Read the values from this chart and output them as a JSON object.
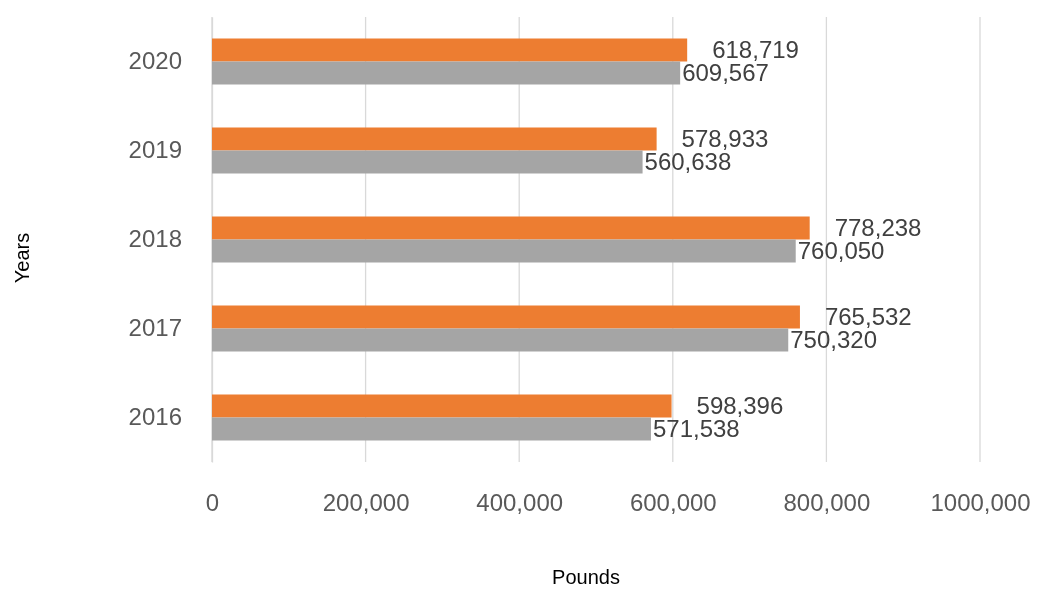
{
  "chart_data": {
    "type": "bar",
    "orientation": "horizontal",
    "xlabel": "Pounds",
    "ylabel": "Years",
    "categories": [
      "2020",
      "2019",
      "2018",
      "2017",
      "2016"
    ],
    "series": [
      {
        "color": "#ed7d31",
        "values": [
          618719,
          578933,
          778238,
          765532,
          598396
        ],
        "value_labels": [
          "618,719",
          "578,933",
          "778,238",
          "765,532",
          "598,396"
        ]
      },
      {
        "color": "#a5a5a5",
        "values": [
          609567,
          560638,
          760050,
          750320,
          571538
        ],
        "value_labels": [
          "609,567",
          "560,638",
          "760,050",
          "750,320",
          "571,538"
        ]
      }
    ],
    "xlim": [
      0,
      1000000
    ],
    "xticks": [
      0,
      {
        "value": 200000,
        "label": "200,000"
      },
      {
        "value": 400000,
        "label": "400,000"
      },
      {
        "value": 600000,
        "label": "600,000"
      },
      {
        "value": 800000,
        "label": "800,000"
      },
      {
        "value": 1000000,
        "label": "1000,000"
      }
    ],
    "grid": "x"
  }
}
